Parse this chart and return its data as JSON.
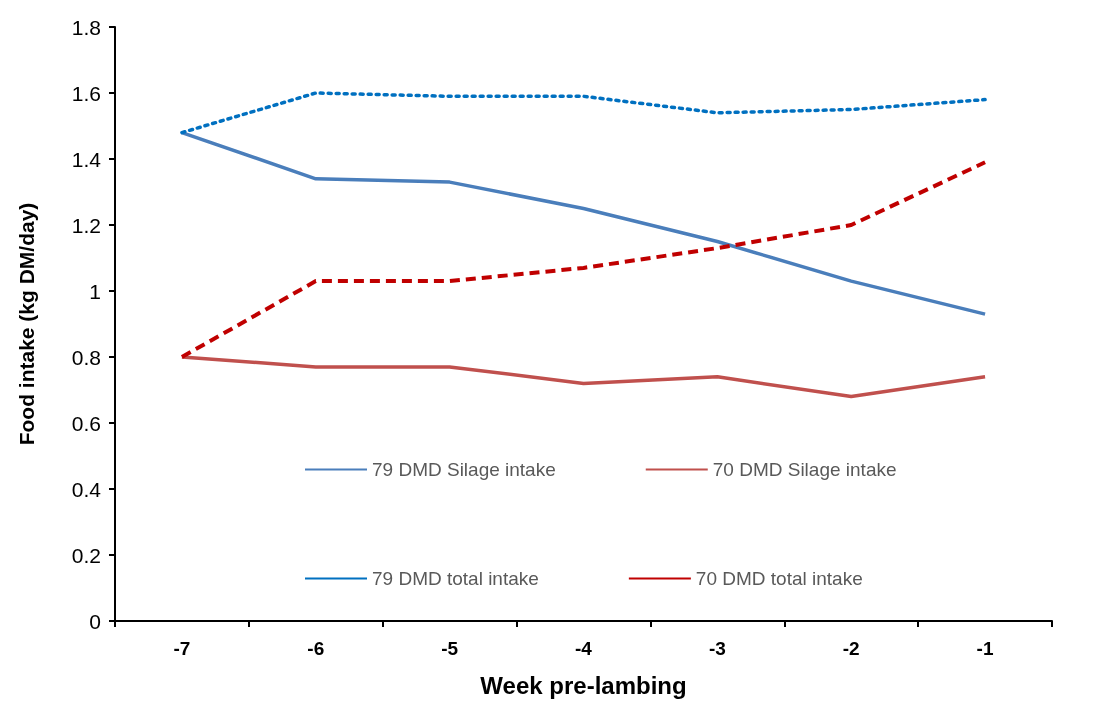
{
  "chart_data": {
    "type": "line",
    "xlabel": "Week pre-lambing",
    "ylabel": "Food intake (kg DM/day)",
    "categories": [
      "-7",
      "-6",
      "-5",
      "-4",
      "-3",
      "-2",
      "-1"
    ],
    "series": [
      {
        "name": "79 DMD Silage intake",
        "color": "#4a7ebb",
        "line_style": "solid",
        "values": [
          1.48,
          1.34,
          1.33,
          1.25,
          1.15,
          1.03,
          0.93
        ]
      },
      {
        "name": "70 DMD Silage intake",
        "color": "#c0504d",
        "line_style": "solid",
        "values": [
          0.8,
          0.77,
          0.77,
          0.72,
          0.74,
          0.68,
          0.74
        ]
      },
      {
        "name": "79 DMD total intake",
        "color": "#0070c0",
        "line_style": "dotted",
        "values": [
          1.48,
          1.6,
          1.59,
          1.59,
          1.54,
          1.55,
          1.58
        ]
      },
      {
        "name": "70 DMD total intake",
        "color": "#c00000",
        "line_style": "dashed",
        "values": [
          0.8,
          1.03,
          1.03,
          1.07,
          1.13,
          1.2,
          1.39
        ]
      }
    ],
    "ylim": [
      0,
      1.8
    ],
    "yticks": [
      0,
      0.2,
      0.4,
      0.6,
      0.8,
      1,
      1.2,
      1.4,
      1.6,
      1.8
    ],
    "grid": false,
    "legend": "bottom",
    "marker": "none"
  }
}
